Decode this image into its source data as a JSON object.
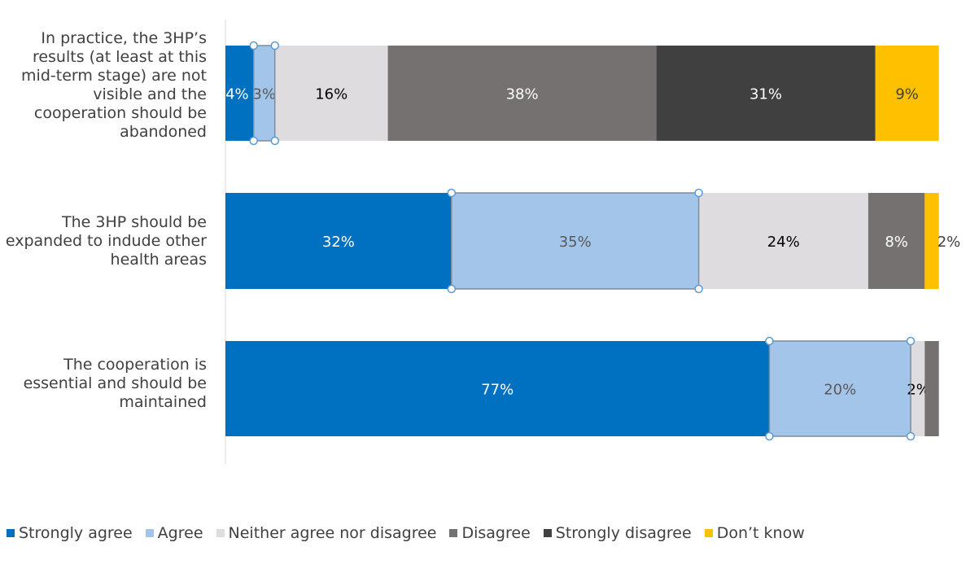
{
  "chart_data": {
    "type": "bar",
    "orientation": "horizontal",
    "stacked": true,
    "percent_scale": [
      0,
      100
    ],
    "categories": [
      "In practice, the 3HP’s results (at least at this mid-term stage) are not visible and the cooperation should be abandoned",
      "The 3HP should be expanded to indude other health areas",
      "The cooperation is essential and should be maintained"
    ],
    "series": [
      {
        "name": "Strongly agree",
        "color": "#0070C0",
        "label_color": "#ffffff",
        "values": [
          4,
          32,
          77
        ],
        "labels": [
          "4%",
          "32%",
          "77%"
        ]
      },
      {
        "name": "Agree",
        "color": "#A3C5EA",
        "label_color": "#595959",
        "values": [
          3,
          35,
          20
        ],
        "labels": [
          "3%",
          "35%",
          "20%"
        ]
      },
      {
        "name": "Neither agree nor disagree",
        "color": "#DEDCDF",
        "label_color": "#000000",
        "values": [
          16,
          24,
          2
        ],
        "labels": [
          "16%",
          "24%",
          "2%"
        ]
      },
      {
        "name": "Disagree",
        "color": "#767171",
        "label_color": "#ffffff",
        "values": [
          38,
          8,
          2
        ],
        "labels": [
          "38%",
          "8%",
          "2%"
        ]
      },
      {
        "name": "Strongly disagree",
        "color": "#404040",
        "label_color": "#ffffff",
        "values": [
          31,
          0,
          0
        ],
        "labels": [
          "31%",
          "",
          ""
        ]
      },
      {
        "name": "Don’t know",
        "color": "#FFC000",
        "label_color": "#404040",
        "values": [
          9,
          2,
          0
        ],
        "labels": [
          "9%",
          "2%",
          ""
        ]
      }
    ],
    "legend_position": "bottom",
    "grid": false
  }
}
